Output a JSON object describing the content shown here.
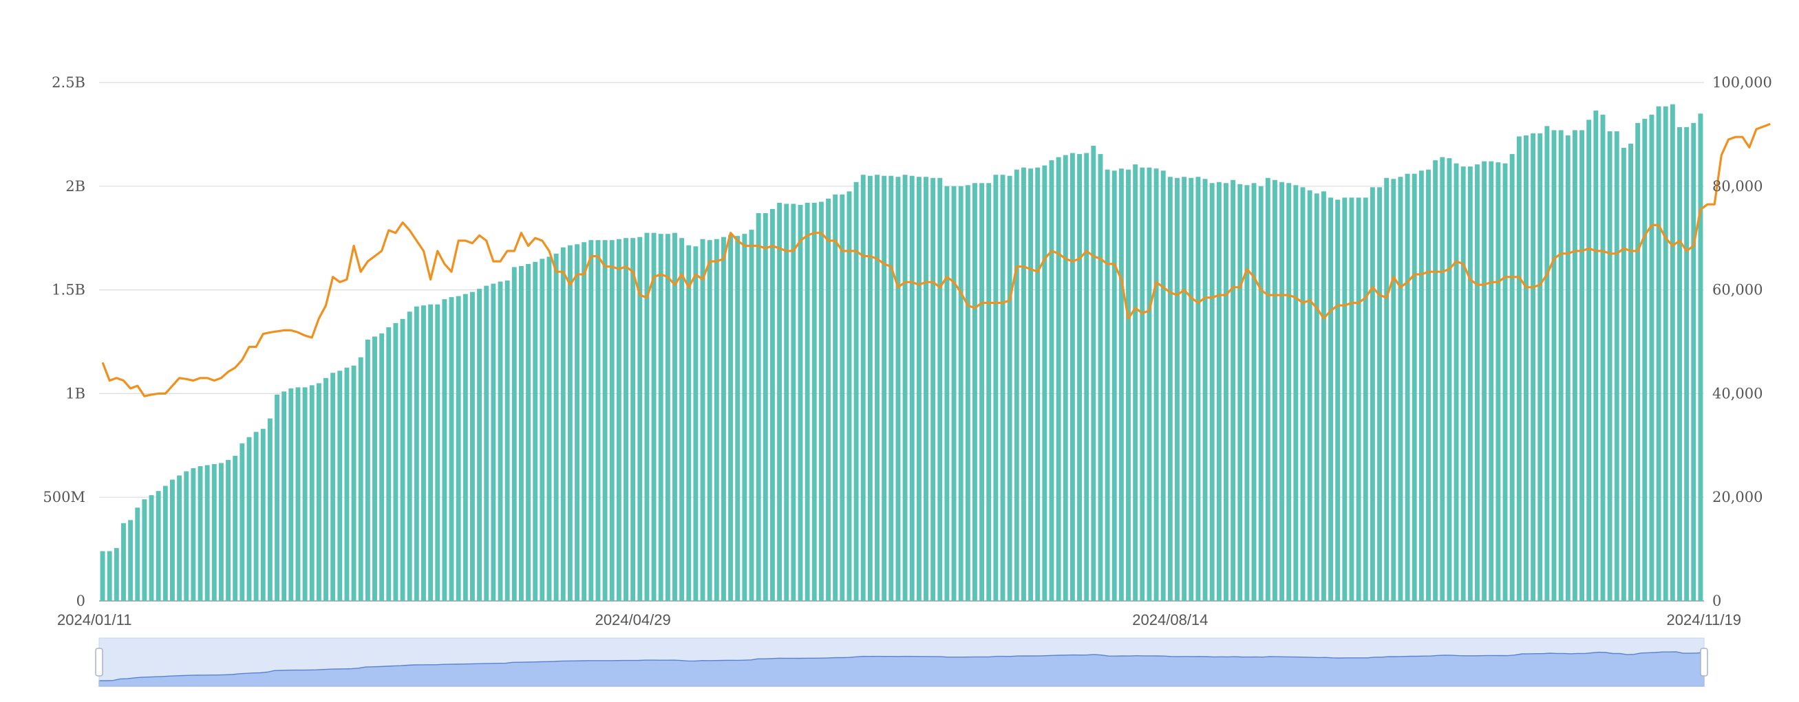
{
  "chart_data": {
    "type": "bar",
    "x_start": "2024-01-11",
    "x_end": "2024-11-19",
    "x_tick_labels": [
      "2024/01/11",
      "2024/04/29",
      "2024/08/14",
      "2024/11/19"
    ],
    "y_left": {
      "ylim": [
        0,
        2500000000
      ],
      "tick_values": [
        0,
        500000000,
        1000000000,
        1500000000,
        2000000000,
        2500000000
      ],
      "tick_labels": [
        "0",
        "500M",
        "1B",
        "1.5B",
        "2B",
        "2.5B"
      ]
    },
    "y_right": {
      "ylim": [
        0,
        100000
      ],
      "tick_values": [
        0,
        20000,
        40000,
        60000,
        80000,
        100000
      ],
      "tick_labels": [
        "0",
        "20,000",
        "40,000",
        "60,000",
        "80,000",
        "100,000"
      ]
    },
    "grid": true,
    "legend": "none",
    "series": [
      {
        "type": "bar",
        "axis": "left",
        "color": "#5bc2b6",
        "values": [
          240000000,
          240000000,
          255000000,
          375000000,
          390000000,
          450000000,
          490000000,
          510000000,
          530000000,
          555000000,
          585000000,
          605000000,
          625000000,
          640000000,
          650000000,
          655000000,
          660000000,
          665000000,
          680000000,
          700000000,
          760000000,
          790000000,
          815000000,
          830000000,
          880000000,
          995000000,
          1010000000,
          1025000000,
          1030000000,
          1030000000,
          1040000000,
          1050000000,
          1075000000,
          1100000000,
          1110000000,
          1125000000,
          1135000000,
          1175000000,
          1260000000,
          1275000000,
          1290000000,
          1320000000,
          1340000000,
          1360000000,
          1395000000,
          1420000000,
          1425000000,
          1430000000,
          1430000000,
          1455000000,
          1465000000,
          1470000000,
          1480000000,
          1490000000,
          1505000000,
          1520000000,
          1530000000,
          1540000000,
          1545000000,
          1610000000,
          1615000000,
          1625000000,
          1635000000,
          1650000000,
          1660000000,
          1675000000,
          1705000000,
          1715000000,
          1720000000,
          1730000000,
          1740000000,
          1740000000,
          1740000000,
          1740000000,
          1745000000,
          1750000000,
          1750000000,
          1755000000,
          1775000000,
          1775000000,
          1770000000,
          1770000000,
          1775000000,
          1750000000,
          1715000000,
          1710000000,
          1745000000,
          1740000000,
          1745000000,
          1755000000,
          1765000000,
          1760000000,
          1770000000,
          1790000000,
          1870000000,
          1870000000,
          1890000000,
          1920000000,
          1915000000,
          1915000000,
          1910000000,
          1920000000,
          1920000000,
          1925000000,
          1940000000,
          1960000000,
          1960000000,
          1975000000,
          2020000000,
          2055000000,
          2050000000,
          2055000000,
          2050000000,
          2050000000,
          2045000000,
          2055000000,
          2050000000,
          2045000000,
          2045000000,
          2040000000,
          2040000000,
          2000000000,
          2000000000,
          2000000000,
          2005000000,
          2015000000,
          2015000000,
          2015000000,
          2055000000,
          2055000000,
          2050000000,
          2080000000,
          2090000000,
          2085000000,
          2090000000,
          2100000000,
          2125000000,
          2140000000,
          2150000000,
          2160000000,
          2155000000,
          2160000000,
          2195000000,
          2155000000,
          2080000000,
          2075000000,
          2085000000,
          2080000000,
          2105000000,
          2090000000,
          2090000000,
          2085000000,
          2075000000,
          2045000000,
          2040000000,
          2045000000,
          2040000000,
          2045000000,
          2035000000,
          2015000000,
          2020000000,
          2015000000,
          2030000000,
          2010000000,
          2005000000,
          2015000000,
          2000000000,
          2040000000,
          2030000000,
          2020000000,
          2015000000,
          2005000000,
          1995000000,
          1980000000,
          1965000000,
          1975000000,
          1945000000,
          1935000000,
          1945000000,
          1945000000,
          1945000000,
          1945000000,
          1995000000,
          1995000000,
          2040000000,
          2035000000,
          2045000000,
          2060000000,
          2060000000,
          2075000000,
          2080000000,
          2125000000,
          2140000000,
          2135000000,
          2110000000,
          2095000000,
          2095000000,
          2105000000,
          2120000000,
          2120000000,
          2115000000,
          2110000000,
          2155000000,
          2240000000,
          2245000000,
          2255000000,
          2255000000,
          2290000000,
          2270000000,
          2270000000,
          2245000000,
          2270000000,
          2270000000,
          2320000000,
          2365000000,
          2345000000,
          2265000000,
          2265000000,
          2185000000,
          2205000000,
          2305000000,
          2325000000,
          2345000000,
          2385000000,
          2385000000,
          2395000000,
          2285000000,
          2285000000,
          2305000000,
          2350000000
        ]
      },
      {
        "type": "line",
        "axis": "right",
        "color": "#f0901e",
        "values": [
          46000,
          42500,
          43000,
          42500,
          41000,
          41500,
          39500,
          39800,
          40000,
          40000,
          41500,
          43000,
          42800,
          42500,
          43000,
          43000,
          42500,
          43000,
          44200,
          45000,
          46500,
          49000,
          49000,
          51500,
          51800,
          52000,
          52200,
          52200,
          51800,
          51200,
          50800,
          54500,
          57000,
          62500,
          61500,
          62000,
          68500,
          63500,
          65500,
          66500,
          67500,
          71500,
          71000,
          73000,
          71500,
          69500,
          67500,
          62000,
          67500,
          65000,
          63500,
          69500,
          69500,
          69000,
          70500,
          69500,
          65500,
          65500,
          67500,
          67500,
          71000,
          68500,
          70000,
          69500,
          67500,
          63500,
          63500,
          61000,
          63000,
          63000,
          66500,
          66500,
          64500,
          64500,
          64000,
          64500,
          63500,
          59000,
          58500,
          62500,
          63000,
          62500,
          61000,
          63000,
          60500,
          63000,
          62000,
          65500,
          65500,
          66000,
          71000,
          69500,
          68500,
          68500,
          68500,
          68000,
          68500,
          68000,
          67500,
          67500,
          69500,
          70500,
          71000,
          71000,
          69500,
          69500,
          67500,
          67500,
          67500,
          66500,
          66500,
          66000,
          65000,
          64500,
          60500,
          61500,
          61500,
          61000,
          61500,
          61500,
          60500,
          62500,
          61500,
          59500,
          57000,
          56500,
          57500,
          57500,
          57500,
          57500,
          58000,
          64500,
          64500,
          64000,
          63500,
          66000,
          67500,
          67000,
          66000,
          65500,
          66000,
          67500,
          66500,
          66000,
          65000,
          65000,
          62000,
          54500,
          56500,
          55500,
          56000,
          61500,
          60500,
          59500,
          59000,
          60000,
          58500,
          57500,
          58500,
          58500,
          59000,
          59000,
          60500,
          60500,
          64000,
          62500,
          60000,
          59000,
          59000,
          59000,
          59000,
          58500,
          57500,
          58000,
          56500,
          54500,
          56000,
          57000,
          57000,
          57500,
          57500,
          58500,
          60500,
          59000,
          58500,
          62500,
          60500,
          61500,
          63000,
          63000,
          63500,
          63500,
          63500,
          64000,
          65500,
          65000,
          62000,
          61000,
          61000,
          61500,
          61500,
          62500,
          62500,
          62500,
          60500,
          60500,
          61000,
          63000,
          66000,
          67000,
          67000,
          67500,
          67500,
          68000,
          67500,
          67500,
          67000,
          67000,
          68000,
          67500,
          67500,
          70500,
          72500,
          72500,
          70000,
          68500,
          69500,
          67500,
          68500,
          75500,
          76500,
          76500,
          86000,
          89000,
          89500,
          89500,
          87500,
          91000,
          91500,
          92000
        ]
      }
    ]
  }
}
